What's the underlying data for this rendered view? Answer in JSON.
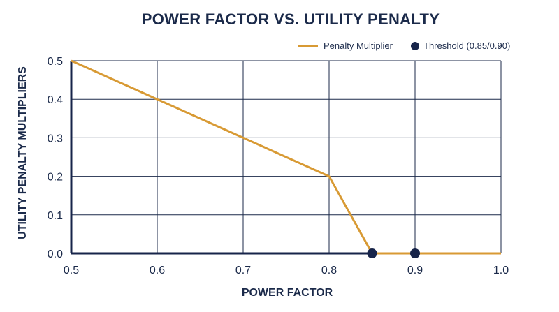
{
  "chart_data": {
    "type": "line",
    "title": "POWER FACTOR VS. UTILITY PENALTY",
    "xlabel": "POWER FACTOR",
    "ylabel": "UTILITY PENALTY MULTIPLIERS",
    "xlim": [
      0.5,
      1.0
    ],
    "ylim": [
      0.0,
      0.5
    ],
    "x_ticks": [
      "0.5",
      "0.6",
      "0.7",
      "0.8",
      "0.9",
      "1.0"
    ],
    "y_ticks": [
      "0.0",
      "0.1",
      "0.2",
      "0.3",
      "0.4",
      "0.5"
    ],
    "x_tick_values": [
      0.5,
      0.6,
      0.7,
      0.8,
      0.9,
      1.0
    ],
    "y_tick_values": [
      0.0,
      0.1,
      0.2,
      0.3,
      0.4,
      0.5
    ],
    "grid": true,
    "legend_position": "top-right",
    "series": [
      {
        "name": "Penalty Multiplier",
        "type": "line",
        "color": "#d89a34",
        "x": [
          0.5,
          0.6,
          0.7,
          0.8,
          0.85,
          0.9,
          1.0
        ],
        "y": [
          0.5,
          0.4,
          0.3,
          0.2,
          0.0,
          0.0,
          0.0
        ]
      },
      {
        "name": "Threshold (0.85/0.90)",
        "type": "scatter",
        "color": "#17244a",
        "x": [
          0.85,
          0.9
        ],
        "y": [
          0.0,
          0.0
        ]
      }
    ]
  }
}
